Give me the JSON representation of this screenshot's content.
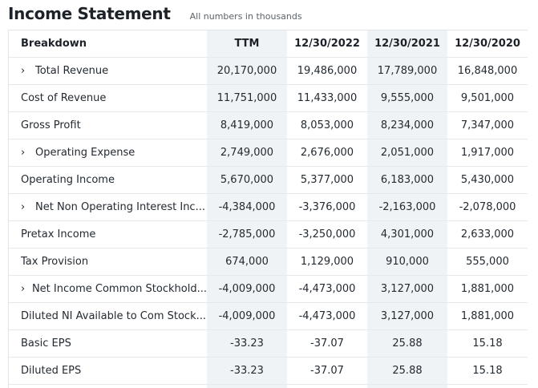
{
  "header": {
    "title": "Income Statement",
    "subtitle": "All numbers in thousands"
  },
  "columns": {
    "breakdown": "Breakdown",
    "c0": "TTM",
    "c1": "12/30/2022",
    "c2": "12/30/2021",
    "c3": "12/30/2020"
  },
  "icons": {
    "expand": "chevron-right-icon"
  },
  "rows": [
    {
      "label": "Total Revenue",
      "expandable": true,
      "v": [
        "20,170,000",
        "19,486,000",
        "17,789,000",
        "16,848,000"
      ]
    },
    {
      "label": "Cost of Revenue",
      "expandable": false,
      "v": [
        "11,751,000",
        "11,433,000",
        "9,555,000",
        "9,501,000"
      ]
    },
    {
      "label": "Gross Profit",
      "expandable": false,
      "v": [
        "8,419,000",
        "8,053,000",
        "8,234,000",
        "7,347,000"
      ]
    },
    {
      "label": "Operating Expense",
      "expandable": true,
      "v": [
        "2,749,000",
        "2,676,000",
        "2,051,000",
        "1,917,000"
      ]
    },
    {
      "label": "Operating Income",
      "expandable": false,
      "v": [
        "5,670,000",
        "5,377,000",
        "6,183,000",
        "5,430,000"
      ]
    },
    {
      "label": "Net Non Operating Interest Inc...",
      "expandable": true,
      "v": [
        "-4,384,000",
        "-3,376,000",
        "-2,163,000",
        "-2,078,000"
      ]
    },
    {
      "label": "Pretax Income",
      "expandable": false,
      "v": [
        "-2,785,000",
        "-3,250,000",
        "4,301,000",
        "2,633,000"
      ]
    },
    {
      "label": "Tax Provision",
      "expandable": false,
      "v": [
        "674,000",
        "1,129,000",
        "910,000",
        "555,000"
      ]
    },
    {
      "label": "Net Income Common Stockhold...",
      "expandable": true,
      "v": [
        "-4,009,000",
        "-4,473,000",
        "3,127,000",
        "1,881,000"
      ]
    },
    {
      "label": "Diluted NI Available to Com Stock...",
      "expandable": false,
      "v": [
        "-4,009,000",
        "-4,473,000",
        "3,127,000",
        "1,881,000"
      ]
    },
    {
      "label": "Basic EPS",
      "expandable": false,
      "v": [
        "-33.23",
        "-37.07",
        "25.88",
        "15.18"
      ]
    },
    {
      "label": "Diluted EPS",
      "expandable": false,
      "v": [
        "-33.23",
        "-37.07",
        "25.88",
        "15.18"
      ]
    }
  ]
}
